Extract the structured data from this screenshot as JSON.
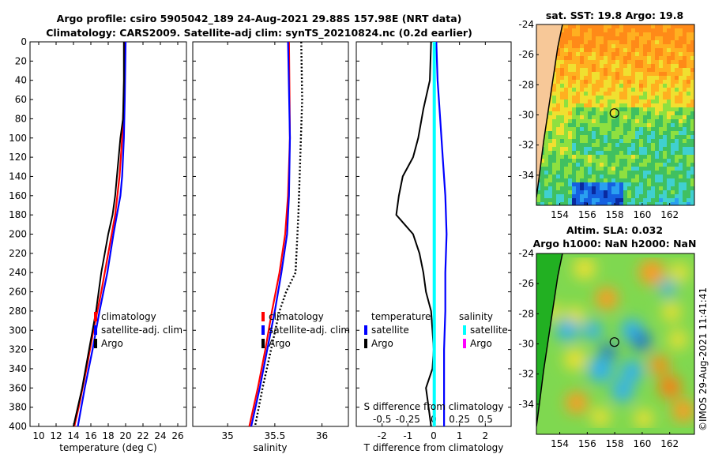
{
  "title": {
    "line1": "Argo profile: csiro 5905042_189 24-Aug-2021 29.88S 157.98E (NRT data)",
    "line2": "Climatology: CARS2009. Satellite-adj clim: synTS_20210824.nc (0.2d earlier)"
  },
  "sst_map": {
    "title": "sat. SST: 19.8 Argo: 19.8"
  },
  "sla_map": {
    "title1": "Altim. SLA: 0.032",
    "title2": "Argo h1000: NaN h2000: NaN"
  },
  "side_text": "©IMOS 29-Aug-2021 11:41:41",
  "legend": {
    "climatology": "climatology",
    "satellite_adj": "satellite-adj. clim",
    "argo": "Argo",
    "temperature": "temperature",
    "salinity": "salinity",
    "satellite": "satellite"
  },
  "colors": {
    "climatology": "#ff0000",
    "satellite": "#0000ff",
    "argo": "#000000",
    "salinity_sat": "#00ffff",
    "salinity_argo": "#ff00ff"
  },
  "chart_data": [
    {
      "type": "line",
      "xlabel": "temperature (deg C)",
      "ylabel": "",
      "xlim": [
        9,
        27
      ],
      "ylim": [
        0,
        400
      ],
      "x_ticks": [
        10,
        12,
        14,
        16,
        18,
        20,
        22,
        24,
        26
      ],
      "y_ticks": [
        0,
        20,
        40,
        60,
        80,
        100,
        120,
        140,
        160,
        180,
        200,
        220,
        240,
        260,
        280,
        300,
        320,
        340,
        360,
        380,
        400
      ],
      "series": [
        {
          "name": "climatology",
          "color": "#ff0000",
          "depth": [
            0,
            60,
            100,
            140,
            180,
            220,
            260,
            300,
            340,
            380,
            400
          ],
          "values": [
            19.9,
            19.8,
            19.6,
            19.3,
            18.8,
            18.0,
            17.2,
            16.3,
            15.5,
            14.6,
            14.1
          ]
        },
        {
          "name": "satellite-adj. clim",
          "color": "#0000ff",
          "depth": [
            0,
            60,
            100,
            140,
            160,
            180,
            200,
            240,
            280,
            320,
            360,
            400
          ],
          "values": [
            20.0,
            19.9,
            19.8,
            19.6,
            19.4,
            19.0,
            18.6,
            17.9,
            17.0,
            16.2,
            15.3,
            14.5
          ]
        },
        {
          "name": "Argo",
          "color": "#000000",
          "depth": [
            0,
            40,
            80,
            100,
            120,
            140,
            160,
            180,
            200,
            220,
            240,
            260,
            280,
            300,
            320,
            340,
            360,
            380,
            400
          ],
          "values": [
            19.8,
            19.8,
            19.7,
            19.4,
            19.2,
            19.0,
            18.8,
            18.5,
            18.0,
            17.6,
            17.2,
            16.9,
            16.6,
            16.2,
            15.8,
            15.4,
            15.0,
            14.5,
            14.0
          ]
        }
      ]
    },
    {
      "type": "line",
      "xlabel": "salinity",
      "ylabel": "",
      "xlim": [
        34.63,
        36.28
      ],
      "ylim": [
        0,
        400
      ],
      "x_ticks": [
        35,
        35.5,
        36
      ],
      "x_tick_labels": [
        "35",
        "35.5",
        "36"
      ],
      "series": [
        {
          "name": "climatology",
          "color": "#ff0000",
          "depth": [
            0,
            100,
            160,
            200,
            240,
            280,
            320,
            360,
            400
          ],
          "values": [
            35.65,
            35.66,
            35.64,
            35.61,
            35.55,
            35.47,
            35.4,
            35.32,
            35.23
          ]
        },
        {
          "name": "satellite-adj. clim",
          "color": "#0000ff",
          "depth": [
            0,
            100,
            160,
            200,
            240,
            280,
            320,
            360,
            400
          ],
          "values": [
            35.64,
            35.66,
            35.65,
            35.63,
            35.57,
            35.5,
            35.42,
            35.34,
            35.25
          ]
        },
        {
          "name": "Argo",
          "color": "#000000",
          "depth": [
            0,
            60,
            120,
            180,
            240,
            260,
            280,
            320,
            360,
            400
          ],
          "values": [
            35.78,
            35.79,
            35.77,
            35.75,
            35.72,
            35.62,
            35.55,
            35.46,
            35.37,
            35.29
          ]
        }
      ]
    },
    {
      "type": "line",
      "xlabel": "T difference from climatology",
      "x2label": "S difference from climatology",
      "xlim": [
        -3.0,
        3.0
      ],
      "ylim": [
        0,
        400
      ],
      "x_ticks": [
        -2,
        -1,
        0,
        1,
        2
      ],
      "x2_ticks": [
        -0.5,
        -0.25,
        0,
        0.25,
        0.5
      ],
      "x2_tick_labels": [
        "-0.5",
        "-0.25",
        "0",
        "0.25",
        "0.5"
      ],
      "series": [
        {
          "name": "temperature satellite",
          "color": "#0000ff",
          "depth": [
            0,
            40,
            80,
            120,
            160,
            200,
            240,
            280,
            320,
            360,
            400
          ],
          "values": [
            0.1,
            0.15,
            0.25,
            0.35,
            0.45,
            0.5,
            0.45,
            0.45,
            0.4,
            0.4,
            0.4
          ]
        },
        {
          "name": "temperature Argo",
          "color": "#000000",
          "depth": [
            0,
            40,
            70,
            100,
            120,
            140,
            160,
            180,
            200,
            220,
            240,
            260,
            280,
            300,
            320,
            340,
            360,
            380,
            400
          ],
          "values": [
            -0.1,
            -0.15,
            -0.4,
            -0.6,
            -0.8,
            -1.2,
            -1.35,
            -1.45,
            -0.8,
            -0.55,
            -0.4,
            -0.3,
            -0.1,
            -0.05,
            0.0,
            -0.05,
            -0.3,
            -0.2,
            -0.1
          ]
        },
        {
          "name": "salinity satellite",
          "color": "#00ffff",
          "depth": [
            0,
            100,
            200,
            300,
            400
          ],
          "values": [
            0.02,
            0.02,
            0.02,
            0.02,
            0.02
          ]
        },
        {
          "name": "salinity Argo",
          "color": "#ff00ff",
          "depth": [],
          "values": []
        }
      ]
    },
    {
      "type": "heatmap",
      "title": "sat. SST: 19.8 Argo: 19.8",
      "x_ticks": [
        154,
        156,
        158,
        160,
        162
      ],
      "y_ticks": [
        -24,
        -26,
        -28,
        -30,
        -32,
        -34
      ],
      "xlim": [
        152.3,
        163.8
      ],
      "ylim": [
        -36,
        -24
      ],
      "marker": {
        "lon": 157.98,
        "lat": -29.88
      }
    },
    {
      "type": "heatmap",
      "title": "Altim. SLA: 0.032",
      "x_ticks": [
        154,
        156,
        158,
        160,
        162
      ],
      "y_ticks": [
        -24,
        -26,
        -28,
        -30,
        -32,
        -34
      ],
      "xlim": [
        152.3,
        163.8
      ],
      "ylim": [
        -36,
        -24
      ],
      "marker": {
        "lon": 157.98,
        "lat": -29.88
      }
    }
  ]
}
